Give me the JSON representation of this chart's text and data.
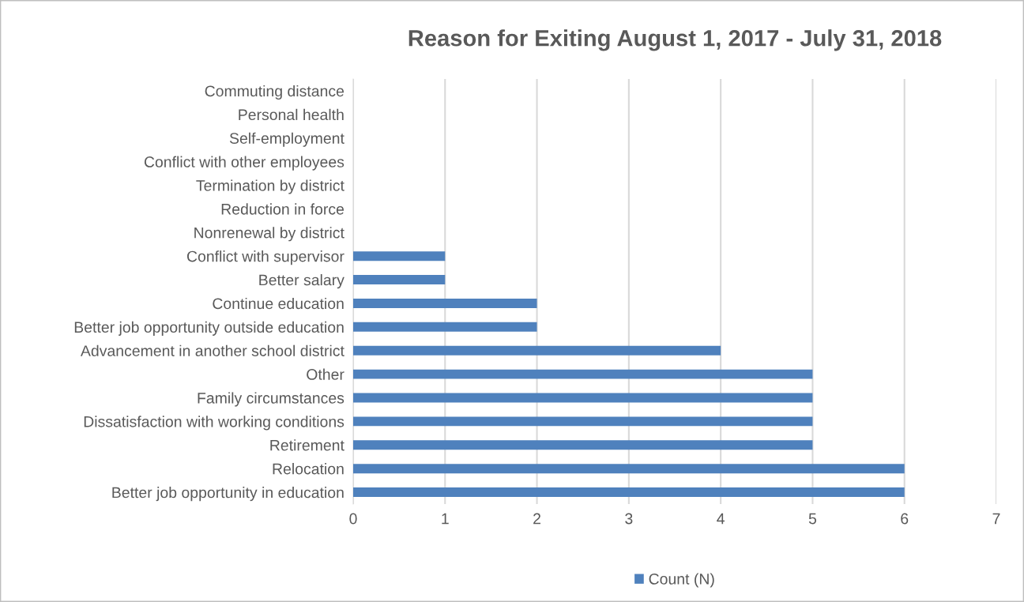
{
  "chart_data": {
    "type": "bar",
    "orientation": "horizontal",
    "title": "Reason for Exiting August 1, 2017 - July 31, 2018",
    "categories": [
      "Commuting distance",
      "Personal health",
      "Self-employment",
      "Conflict with other employees",
      "Termination by district",
      "Reduction in force",
      "Nonrenewal by district",
      "Conflict with supervisor",
      "Better salary",
      "Continue education",
      "Better job opportunity outside education",
      "Advancement in another school district",
      "Other",
      "Family circumstances",
      "Dissatisfaction with working conditions",
      "Retirement",
      "Relocation",
      "Better job opportunity in education"
    ],
    "series": [
      {
        "name": "Count (N)",
        "color": "#4f81bd",
        "values": [
          0,
          0,
          0,
          0,
          0,
          0,
          0,
          1,
          1,
          2,
          2,
          4,
          5,
          5,
          5,
          5,
          6,
          6
        ]
      }
    ],
    "xlim": [
      0,
      7
    ],
    "xticks": [
      0,
      1,
      2,
      3,
      4,
      5,
      6,
      7
    ],
    "grid": "x",
    "legend": "bottom"
  }
}
